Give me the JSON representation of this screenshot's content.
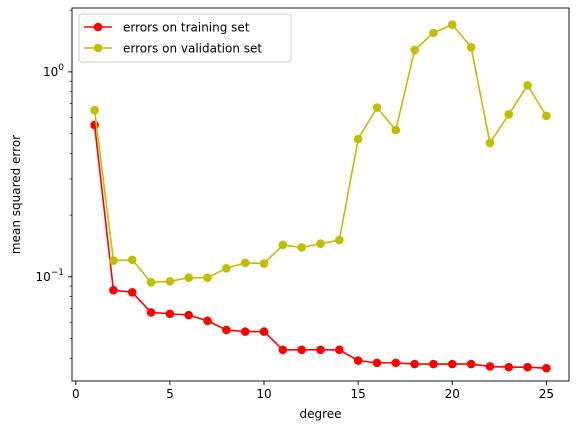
{
  "chart_data": {
    "type": "line",
    "xlabel": "degree",
    "ylabel": "mean squared error",
    "yscale": "log",
    "xlim": [
      -0.2,
      26.2
    ],
    "ylim": [
      0.031,
      2.05
    ],
    "xticks": [
      0,
      5,
      10,
      15,
      20,
      25
    ],
    "yticks": [
      {
        "value": 0.1,
        "base": "10",
        "exp": "−1"
      },
      {
        "value": 1,
        "base": "10",
        "exp": "0"
      }
    ],
    "x": [
      1,
      2,
      3,
      4,
      5,
      6,
      7,
      8,
      9,
      10,
      11,
      12,
      13,
      14,
      15,
      16,
      17,
      18,
      19,
      20,
      21,
      22,
      23,
      24,
      25
    ],
    "series": [
      {
        "name": "errors on training set",
        "color": "#ff0000",
        "values": [
          0.55,
          0.086,
          0.084,
          0.067,
          0.066,
          0.065,
          0.061,
          0.055,
          0.054,
          0.054,
          0.044,
          0.044,
          0.044,
          0.044,
          0.039,
          0.038,
          0.038,
          0.0375,
          0.0375,
          0.0375,
          0.0375,
          0.0365,
          0.0362,
          0.0362,
          0.0358
        ]
      },
      {
        "name": "errors on validation set",
        "color": "#bfbf00",
        "values": [
          0.65,
          0.12,
          0.121,
          0.094,
          0.095,
          0.099,
          0.099,
          0.11,
          0.117,
          0.116,
          0.143,
          0.139,
          0.145,
          0.151,
          0.47,
          0.67,
          0.52,
          1.28,
          1.55,
          1.7,
          1.32,
          0.45,
          0.62,
          0.86,
          0.61
        ]
      }
    ],
    "legend": "upper-left",
    "grid": false
  }
}
